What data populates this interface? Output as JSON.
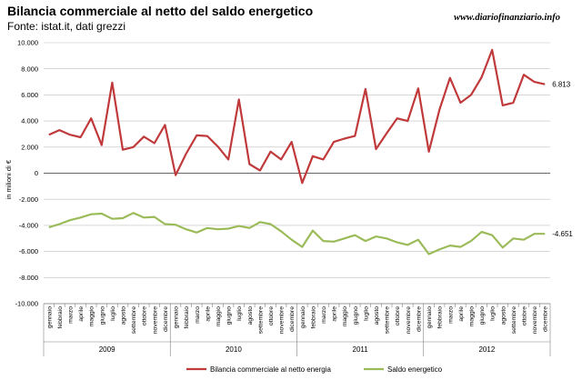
{
  "header": {
    "title": "Bilancia commerciale al netto del saldo energetico",
    "subtitle": "Fonte: istat.it, dati grezzi",
    "site": "www.diariofinanziario.info"
  },
  "colors": {
    "series1": "#c0393b",
    "series2": "#9bbb59",
    "zero_line": "#666666",
    "grid": "#bfbfbf"
  },
  "chart_data": {
    "type": "line",
    "title": "Bilancia commerciale al netto del saldo energetico",
    "xlabel": "",
    "ylabel": "in milioni di €",
    "ylim": [
      -10000,
      10000
    ],
    "yticks": [
      -10000,
      -8000,
      -6000,
      -4000,
      -2000,
      0,
      2000,
      4000,
      6000,
      8000,
      10000
    ],
    "ytick_labels": [
      "-10.000",
      "-8.000",
      "-6.000",
      "-4.000",
      "-2.000",
      "0",
      "2.000",
      "4.000",
      "6.000",
      "8.000",
      "10.000"
    ],
    "grid": "horizontal",
    "legend_position": "bottom",
    "months": [
      "gennaio",
      "febbraio",
      "marzo",
      "aprile",
      "maggio",
      "giugno",
      "luglio",
      "agosto",
      "settembre",
      "ottobre",
      "novembre",
      "dicembre"
    ],
    "years": [
      "2009",
      "2010",
      "2011",
      "2012"
    ],
    "series": [
      {
        "name": "Bilancia commerciale al netto energia",
        "color": "#c0393b",
        "end_label": "6.813",
        "values": [
          2950,
          3300,
          2950,
          2750,
          4200,
          2150,
          6950,
          1800,
          2000,
          2800,
          2300,
          3700,
          -150,
          1500,
          2900,
          2850,
          2050,
          1050,
          5650,
          700,
          200,
          1650,
          1050,
          2400,
          -750,
          1300,
          1050,
          2400,
          2650,
          2850,
          6450,
          1850,
          3050,
          4200,
          4000,
          6500,
          1650,
          4850,
          7300,
          5400,
          6000,
          7350,
          9450,
          5200,
          5400,
          7550,
          7000,
          6813
        ]
      },
      {
        "name": "Saldo energetico",
        "color": "#9bbb59",
        "end_label": "-4.651",
        "values": [
          -4150,
          -3900,
          -3600,
          -3400,
          -3150,
          -3100,
          -3500,
          -3450,
          -3050,
          -3400,
          -3350,
          -3900,
          -3950,
          -4300,
          -4550,
          -4200,
          -4300,
          -4250,
          -4050,
          -4200,
          -3750,
          -3900,
          -4450,
          -5100,
          -5650,
          -4400,
          -5200,
          -5250,
          -5000,
          -4750,
          -5200,
          -4850,
          -5000,
          -5300,
          -5500,
          -5100,
          -6200,
          -5850,
          -5550,
          -5650,
          -5200,
          -4500,
          -4750,
          -5700,
          -5000,
          -5100,
          -4650,
          -4651
        ]
      }
    ]
  }
}
